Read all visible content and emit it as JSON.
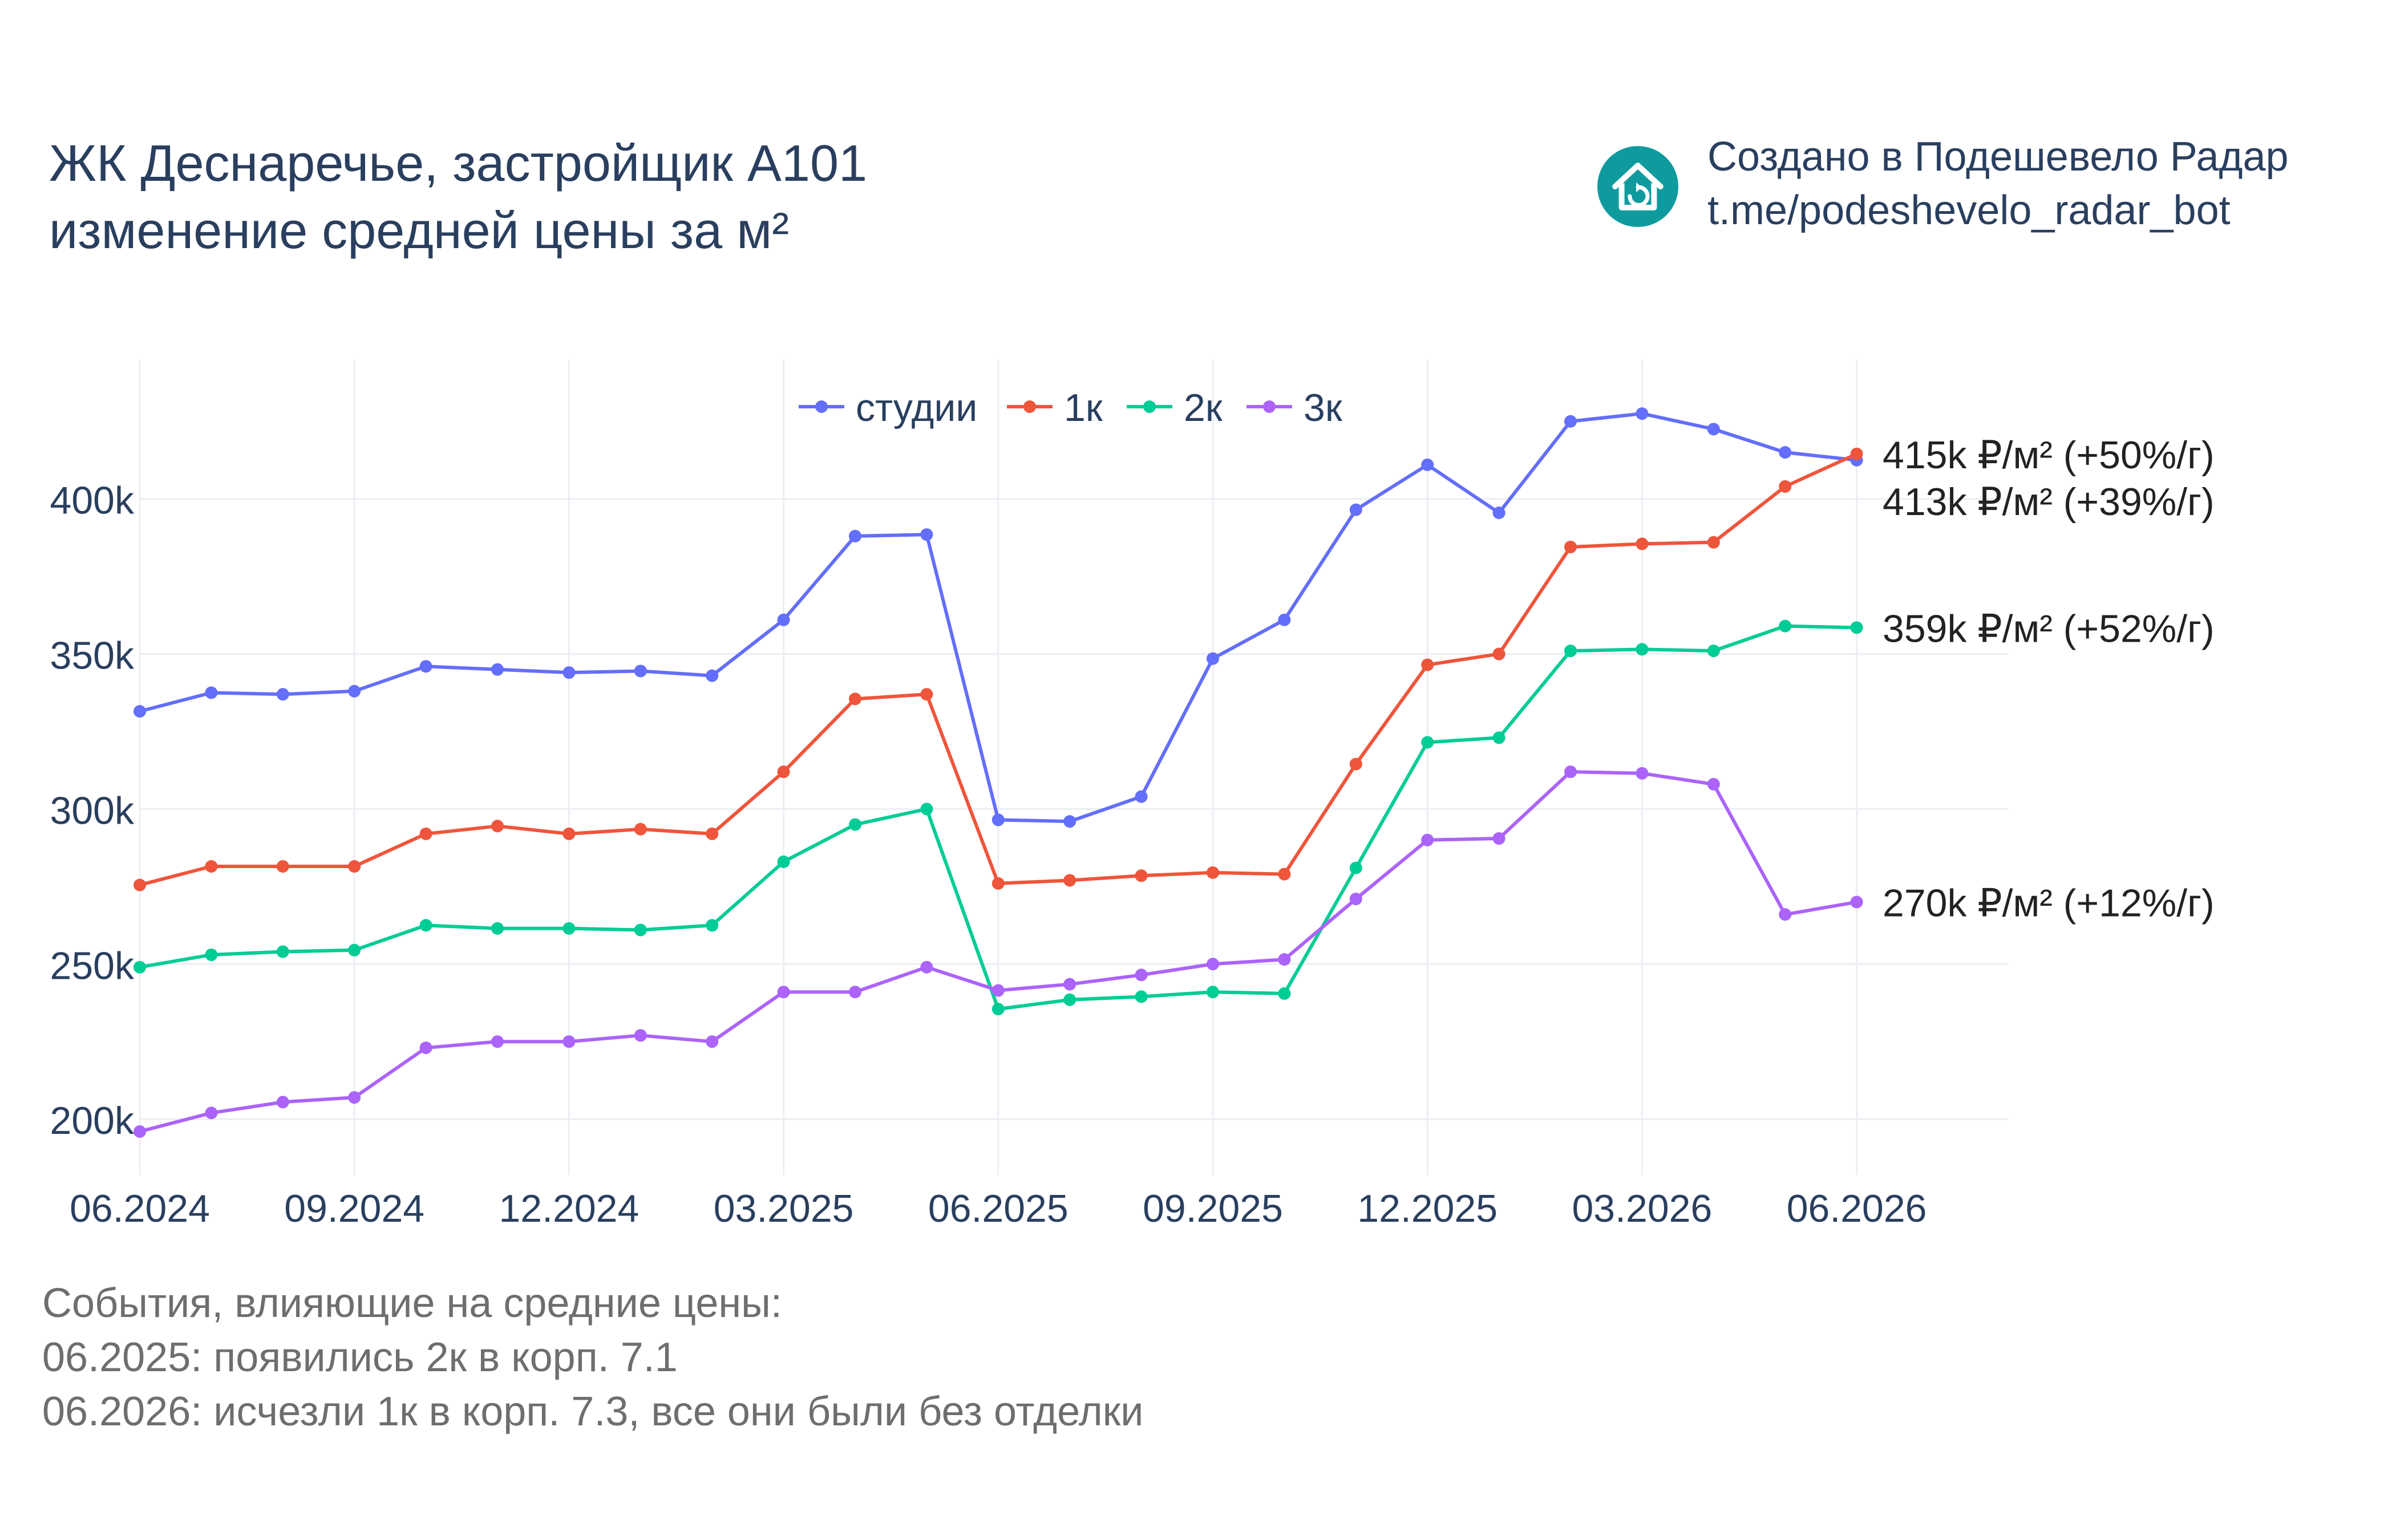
{
  "header": {
    "title_line1": "ЖК Деснаречье, застройщик А101",
    "title_line2": "изменение средней цены за м²"
  },
  "brand": {
    "line1": "Создано в Подешевело Радар",
    "line2": "t.me/podeshevelo_radar_bot",
    "logo_icon": "house-refresh-icon",
    "logo_color": "#0f9b9e"
  },
  "notes": {
    "heading": "События, влияющие на средние цены:",
    "items": [
      "06.2025: появились 2к в корп. 7.1",
      "06.2026: исчезли 1к в корп. 7.3, все они были без отделки"
    ]
  },
  "chart_data": {
    "type": "line",
    "x": [
      "06.2024",
      "07.2024",
      "08.2024",
      "09.2024",
      "10.2024",
      "11.2024",
      "12.2024",
      "01.2025",
      "02.2025",
      "03.2025",
      "04.2025",
      "05.2025",
      "06.2025",
      "07.2025",
      "08.2025",
      "09.2025",
      "10.2025",
      "11.2025",
      "12.2025",
      "01.2026",
      "02.2026",
      "03.2026",
      "04.2026",
      "05.2026",
      "06.2026"
    ],
    "x_tick_labels": [
      "06.2024",
      "09.2024",
      "12.2024",
      "03.2025",
      "06.2025",
      "09.2025",
      "12.2025",
      "03.2026",
      "06.2026"
    ],
    "y_tick_values": [
      200,
      250,
      300,
      350,
      400
    ],
    "y_tick_labels": [
      "200k",
      "250k",
      "300k",
      "350k",
      "400k"
    ],
    "ylim": [
      182,
      445
    ],
    "ylabel": "",
    "xlabel": "",
    "grid": true,
    "legend_position": "top-center",
    "series": [
      {
        "name": "студии",
        "color": "#636efa",
        "values": [
          331.5,
          337.5,
          337,
          338,
          346,
          345,
          344,
          344.5,
          343,
          361,
          388,
          388.5,
          296.5,
          296,
          304,
          348.5,
          361,
          396.5,
          411,
          395.5,
          425,
          427.5,
          422.5,
          415,
          412.5
        ],
        "end_label": "413k ₽/м² (+39%/г)"
      },
      {
        "name": "1к",
        "color": "#ef553b",
        "values": [
          275.5,
          281.5,
          281.5,
          281.5,
          292,
          294.5,
          292,
          293.5,
          292,
          312,
          335.5,
          337,
          276,
          277,
          278.5,
          279.5,
          279,
          314.5,
          346.5,
          350,
          384.5,
          385.5,
          386,
          404,
          414.5
        ],
        "end_label": "415k ₽/м² (+50%/г)"
      },
      {
        "name": "2к",
        "color": "#00cc96",
        "values": [
          249,
          253,
          254,
          254.5,
          262.5,
          261.5,
          261.5,
          261,
          262.5,
          283,
          295,
          300,
          235.5,
          238.5,
          239.5,
          241,
          240.5,
          281,
          321.5,
          323,
          351,
          351.5,
          351,
          359,
          358.5
        ],
        "end_label": "359k ₽/м² (+52%/г)"
      },
      {
        "name": "3к",
        "color": "#ab63fa",
        "values": [
          196,
          202,
          205.5,
          207,
          223,
          225,
          225,
          227,
          225,
          241,
          241,
          249,
          241.5,
          243.5,
          246.5,
          250,
          251.5,
          271,
          290,
          290.5,
          312,
          311.5,
          308,
          266,
          270
        ],
        "end_label": "270k ₽/м² (+12%/г)"
      }
    ]
  }
}
